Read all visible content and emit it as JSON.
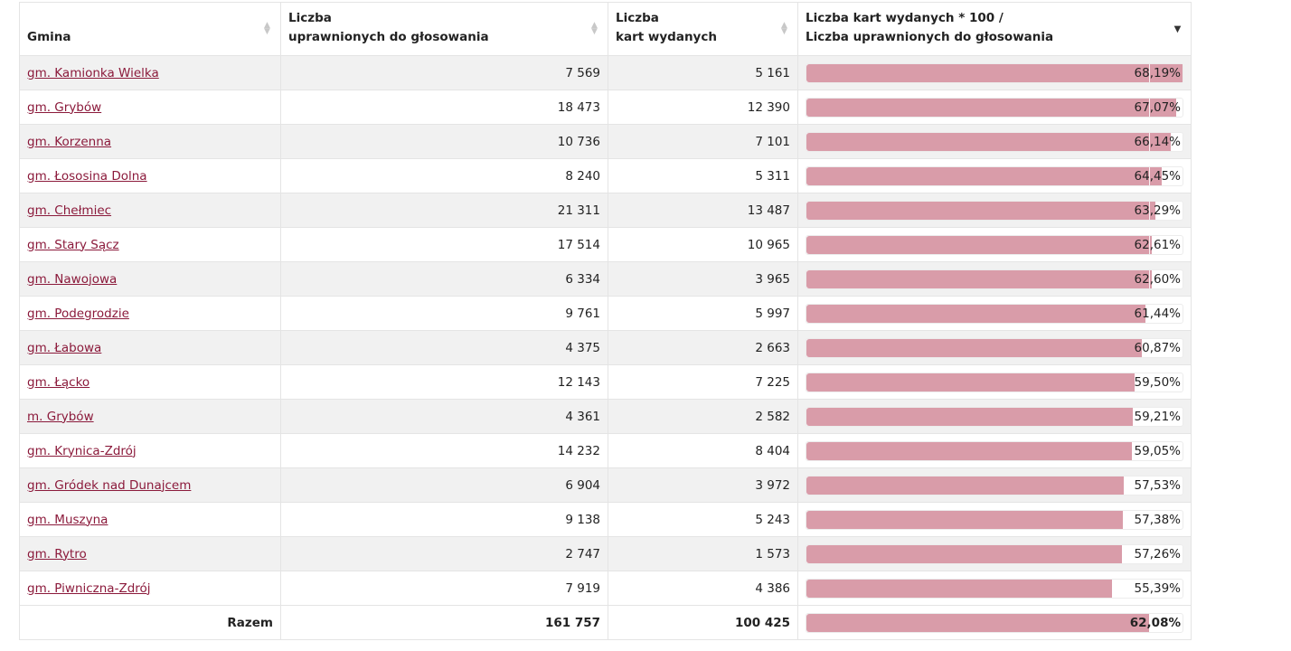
{
  "table": {
    "headers": {
      "gmina": "Gmina",
      "uprawnionych_line1": "Liczba",
      "uprawnionych_line2": "uprawnionych do głosowania",
      "karty_line1": "Liczba",
      "karty_line2": "kart wydanych",
      "ratio_line1": "Liczba kart wydanych * 100 /",
      "ratio_line2": "Liczba uprawnionych do głosowania"
    },
    "sort": {
      "inactive_icon": "▲▼",
      "active_icon": "▼"
    },
    "rows": [
      {
        "gmina": "gm. Kamionka Wielka",
        "uprawnionych": "7 569",
        "karty": "5 161",
        "ratio": "68,19%",
        "ratio_value": 68.19
      },
      {
        "gmina": "gm. Grybów",
        "uprawnionych": "18 473",
        "karty": "12 390",
        "ratio": "67,07%",
        "ratio_value": 67.07
      },
      {
        "gmina": "gm. Korzenna",
        "uprawnionych": "10 736",
        "karty": "7 101",
        "ratio": "66,14%",
        "ratio_value": 66.14
      },
      {
        "gmina": "gm. Łososina Dolna",
        "uprawnionych": "8 240",
        "karty": "5 311",
        "ratio": "64,45%",
        "ratio_value": 64.45
      },
      {
        "gmina": "gm. Chełmiec",
        "uprawnionych": "21 311",
        "karty": "13 487",
        "ratio": "63,29%",
        "ratio_value": 63.29
      },
      {
        "gmina": "gm. Stary Sącz",
        "uprawnionych": "17 514",
        "karty": "10 965",
        "ratio": "62,61%",
        "ratio_value": 62.61
      },
      {
        "gmina": "gm. Nawojowa",
        "uprawnionych": "6 334",
        "karty": "3 965",
        "ratio": "62,60%",
        "ratio_value": 62.6
      },
      {
        "gmina": "gm. Podegrodzie",
        "uprawnionych": "9 761",
        "karty": "5 997",
        "ratio": "61,44%",
        "ratio_value": 61.44
      },
      {
        "gmina": "gm. Łabowa",
        "uprawnionych": "4 375",
        "karty": "2 663",
        "ratio": "60,87%",
        "ratio_value": 60.87
      },
      {
        "gmina": "gm. Łącko",
        "uprawnionych": "12 143",
        "karty": "7 225",
        "ratio": "59,50%",
        "ratio_value": 59.5
      },
      {
        "gmina": "m. Grybów",
        "uprawnionych": "4 361",
        "karty": "2 582",
        "ratio": "59,21%",
        "ratio_value": 59.21
      },
      {
        "gmina": "gm. Krynica-Zdrój",
        "uprawnionych": "14 232",
        "karty": "8 404",
        "ratio": "59,05%",
        "ratio_value": 59.05
      },
      {
        "gmina": "gm. Gródek nad Dunajcem",
        "uprawnionych": "6 904",
        "karty": "3 972",
        "ratio": "57,53%",
        "ratio_value": 57.53
      },
      {
        "gmina": "gm. Muszyna",
        "uprawnionych": "9 138",
        "karty": "5 243",
        "ratio": "57,38%",
        "ratio_value": 57.38
      },
      {
        "gmina": "gm. Rytro",
        "uprawnionych": "2 747",
        "karty": "1 573",
        "ratio": "57,26%",
        "ratio_value": 57.26
      },
      {
        "gmina": "gm. Piwniczna-Zdrój",
        "uprawnionych": "7 919",
        "karty": "4 386",
        "ratio": "55,39%",
        "ratio_value": 55.39
      }
    ],
    "total": {
      "label": "Razem",
      "uprawnionych": "161 757",
      "karty": "100 425",
      "ratio": "62,08%",
      "ratio_value": 62.08
    },
    "bar_scale_max": 68.19,
    "reference_value": 62.08
  },
  "colors": {
    "bar": "#d99ca9",
    "link": "#8b1a3b",
    "row_odd": "#f1f1f1"
  }
}
